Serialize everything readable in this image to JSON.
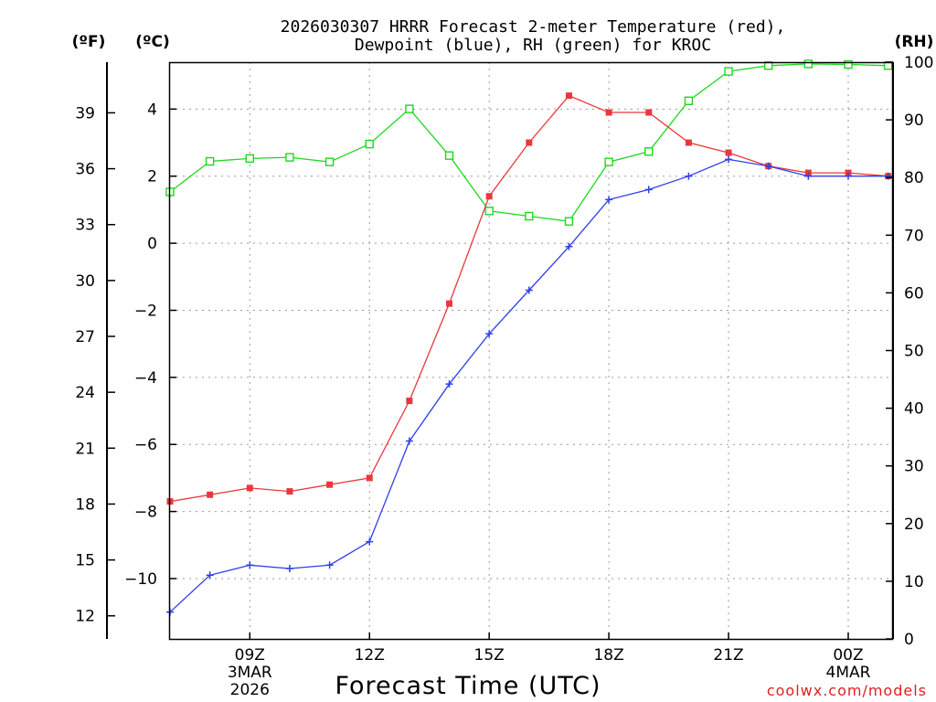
{
  "chart_data": {
    "type": "line",
    "title_line1": "2026030307 HRRR Forecast 2-meter Temperature (red),",
    "title_line2": "Dewpoint (blue), RH (green) for KROC",
    "xlabel": "Forecast Time (UTC)",
    "credit": "coolwx.com/models",
    "units": {
      "fahrenheit": "(ºF)",
      "celsius": "(ºC)",
      "rh": "(RH)"
    },
    "x_hours": [
      7,
      8,
      9,
      10,
      11,
      12,
      13,
      14,
      15,
      16,
      17,
      18,
      19,
      20,
      21,
      22,
      23,
      24,
      25
    ],
    "xlim": [
      7,
      25.1
    ],
    "x_ticks": [
      {
        "hour": 9,
        "label": "09Z",
        "sub1": "3MAR",
        "sub2": "2026"
      },
      {
        "hour": 12,
        "label": "12Z",
        "sub1": "",
        "sub2": ""
      },
      {
        "hour": 15,
        "label": "15Z",
        "sub1": "",
        "sub2": ""
      },
      {
        "hour": 18,
        "label": "18Z",
        "sub1": "",
        "sub2": ""
      },
      {
        "hour": 21,
        "label": "21Z",
        "sub1": "",
        "sub2": ""
      },
      {
        "hour": 24,
        "label": "00Z",
        "sub1": "4MAR",
        "sub2": ""
      }
    ],
    "celsius_axis": {
      "min": -11.8,
      "max": 5.4,
      "ticks": [
        "4",
        "2",
        "0",
        "−2",
        "−4",
        "−6",
        "−8",
        "−10"
      ],
      "tick_values": [
        4,
        2,
        0,
        -2,
        -4,
        -6,
        -8,
        -10
      ]
    },
    "fahrenheit_axis": {
      "ticks": [
        "39",
        "36",
        "33",
        "30",
        "27",
        "24",
        "21",
        "18",
        "15",
        "12"
      ],
      "tick_values": [
        39,
        36,
        33,
        30,
        27,
        24,
        21,
        18,
        15,
        12
      ]
    },
    "rh_axis": {
      "min": 0,
      "max": 100,
      "ticks": [
        "100",
        "90",
        "80",
        "70",
        "60",
        "50",
        "40",
        "30",
        "20",
        "10",
        "0"
      ],
      "tick_values": [
        100,
        90,
        80,
        70,
        60,
        50,
        40,
        30,
        20,
        10,
        0
      ]
    },
    "series": [
      {
        "name": "2-meter Temperature",
        "unit": "C",
        "color": "#e8383d",
        "marker": "filled-square",
        "values": [
          -7.7,
          -7.5,
          -7.3,
          -7.4,
          -7.2,
          -7.0,
          -4.7,
          -1.8,
          1.4,
          3.0,
          4.4,
          3.9,
          3.9,
          3.0,
          2.7,
          2.3,
          2.1,
          2.1,
          2.0
        ]
      },
      {
        "name": "Dewpoint",
        "unit": "C",
        "color": "#2f3fe8",
        "marker": "plus",
        "values": [
          -11.0,
          -9.9,
          -9.6,
          -9.7,
          -9.6,
          -8.9,
          -5.9,
          -4.2,
          -2.7,
          -1.4,
          -0.1,
          1.3,
          1.6,
          2.0,
          2.5,
          2.3,
          2.0,
          2.0,
          2.0
        ]
      },
      {
        "name": "RH",
        "unit": "%",
        "color": "#1ed81e",
        "marker": "open-square",
        "values": [
          77.5,
          82.8,
          83.3,
          83.5,
          82.7,
          85.8,
          91.9,
          83.8,
          74.2,
          73.3,
          72.4,
          82.7,
          84.5,
          93.3,
          98.4,
          99.4,
          99.7,
          99.6,
          99.4
        ]
      }
    ]
  }
}
